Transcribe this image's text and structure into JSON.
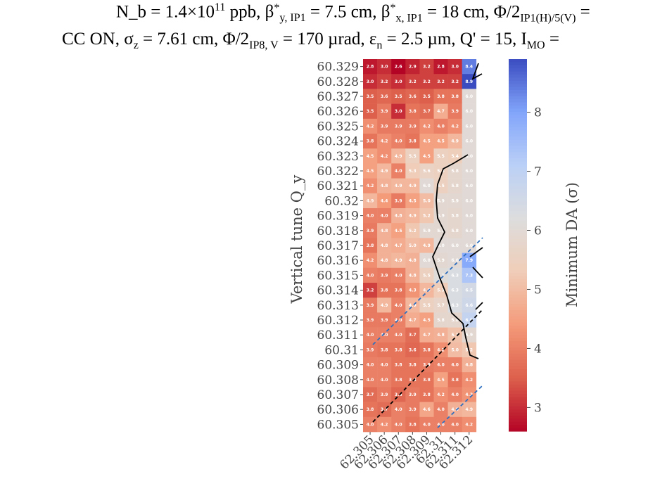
{
  "title": {
    "line1": "N_b = 1.4×10^11 ppb, β*_y,IP1 = 7.5 cm, β*_x,IP1 = 18 cm, Φ/2_IP1(H)/5(V) =",
    "line2": "CC ON, σ_z = 7.61 cm, Φ/2_IP8,V = 170 µrad, ε_n = 2.5 µm, Q' = 15, I_MO ="
  },
  "chart_data": {
    "type": "heatmap",
    "xlabel": "",
    "ylabel": "Vertical tune Q_y",
    "colorbar_label": "Minimum DA (σ)",
    "x_categories": [
      "62.305",
      "62.306",
      "62.307",
      "62.308",
      "62.309",
      "62.31",
      "62.311",
      "62.312"
    ],
    "y_categories": [
      "60.329",
      "60.328",
      "60.327",
      "60.326",
      "60.325",
      "60.324",
      "60.323",
      "60.322",
      "60.321",
      "60.32",
      "60.319",
      "60.318",
      "60.317",
      "60.316",
      "60.315",
      "60.314",
      "60.313",
      "60.312",
      "60.311",
      "60.31",
      "60.309",
      "60.308",
      "60.307",
      "60.306",
      "60.305"
    ],
    "values": [
      [
        2.8,
        3.0,
        2.6,
        2.9,
        3.2,
        2.8,
        3.0,
        8.4
      ],
      [
        3.0,
        3.2,
        3.0,
        3.2,
        3.2,
        3.2,
        3.2,
        8.9
      ],
      [
        3.5,
        3.6,
        3.5,
        3.6,
        3.5,
        3.8,
        3.8,
        6.0
      ],
      [
        3.5,
        3.9,
        3.0,
        3.8,
        3.7,
        4.7,
        3.9,
        6.0
      ],
      [
        4.2,
        3.9,
        3.9,
        3.9,
        4.2,
        4.0,
        4.2,
        6.0
      ],
      [
        3.8,
        4.2,
        4.0,
        3.8,
        4.5,
        4.5,
        4.9,
        6.0
      ],
      [
        4.5,
        4.2,
        4.9,
        5.5,
        4.5,
        5.5,
        5.4,
        6.0
      ],
      [
        4.5,
        4.9,
        4.0,
        5.3,
        5.6,
        5.5,
        5.8,
        6.0
      ],
      [
        4.2,
        4.8,
        4.9,
        4.9,
        6.0,
        5.5,
        5.8,
        6.0
      ],
      [
        4.9,
        4.4,
        3.9,
        4.5,
        5.0,
        5.9,
        5.9,
        6.0
      ],
      [
        4.0,
        4.0,
        4.8,
        4.9,
        5.2,
        5.9,
        5.8,
        6.0
      ],
      [
        3.9,
        4.8,
        4.5,
        5.2,
        5.9,
        5.9,
        5.8,
        6.0
      ],
      [
        3.8,
        4.8,
        4.7,
        5.0,
        4.9,
        6.0,
        6.0,
        6.0
      ],
      [
        4.2,
        4.8,
        4.9,
        4.8,
        6.0,
        5.9,
        6.0,
        7.9
      ],
      [
        4.0,
        3.9,
        4.0,
        4.8,
        5.5,
        6.1,
        6.3,
        7.3
      ],
      [
        3.2,
        3.8,
        3.8,
        4.3,
        4.9,
        5.3,
        6.3,
        6.5
      ],
      [
        3.9,
        4.9,
        4.0,
        4.9,
        5.5,
        5.7,
        6.3,
        6.6
      ],
      [
        3.9,
        3.9,
        4.0,
        4.7,
        4.5,
        5.8,
        5.8,
        6.9
      ],
      [
        4.0,
        4.0,
        4.0,
        3.7,
        4.7,
        4.8,
        5.1,
        5.9
      ],
      [
        3.9,
        3.8,
        3.8,
        3.6,
        3.8,
        4.2,
        5.0,
        5.2
      ],
      [
        4.0,
        4.0,
        3.8,
        3.8,
        3.9,
        4.0,
        4.0,
        4.8
      ],
      [
        4.0,
        4.0,
        3.8,
        3.8,
        3.8,
        4.5,
        3.8,
        4.2
      ],
      [
        3.7,
        3.9,
        3.6,
        3.9,
        3.8,
        4.2,
        4.0,
        4.3
      ],
      [
        3.8,
        3.7,
        4.0,
        3.9,
        4.6,
        4.0,
        4.8,
        4.9
      ],
      [
        4.0,
        4.2,
        4.0,
        3.8,
        4.0,
        4.0,
        4.0,
        4.2
      ]
    ],
    "colorbar_range": [
      2.6,
      8.9
    ],
    "colorbar_ticks": [
      3,
      4,
      5,
      6,
      7,
      8
    ],
    "colormap": [
      "#b40426",
      "#f7f7f7",
      "#3b4cc0"
    ]
  }
}
